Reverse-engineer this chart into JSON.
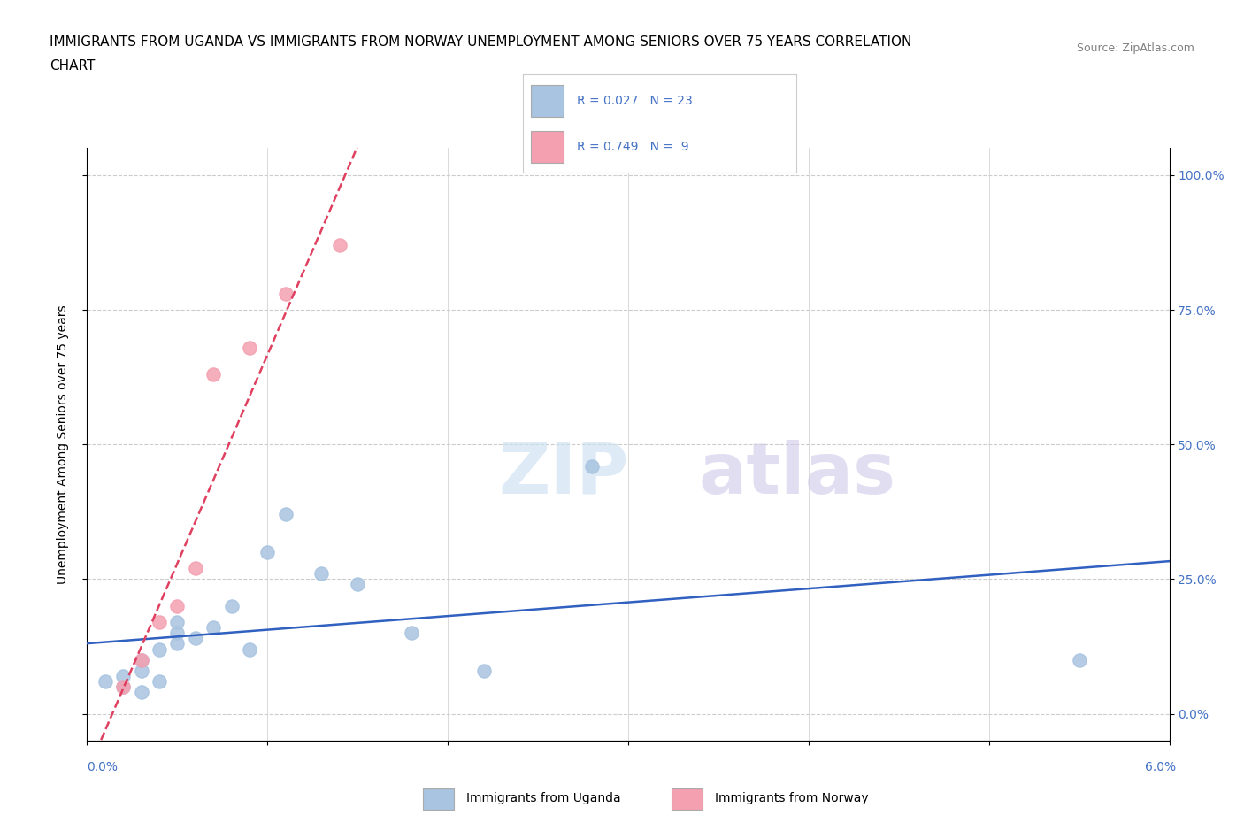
{
  "title_line1": "IMMIGRANTS FROM UGANDA VS IMMIGRANTS FROM NORWAY UNEMPLOYMENT AMONG SENIORS OVER 75 YEARS CORRELATION",
  "title_line2": "CHART",
  "source": "Source: ZipAtlas.com",
  "ylabel": "Unemployment Among Seniors over 75 years",
  "yticks": [
    0.0,
    0.25,
    0.5,
    0.75,
    1.0
  ],
  "ytick_labels": [
    "0.0%",
    "25.0%",
    "50.0%",
    "75.0%",
    "100.0%"
  ],
  "xlim": [
    0.0,
    0.06
  ],
  "ylim": [
    -0.05,
    1.05
  ],
  "watermark_zip": "ZIP",
  "watermark_atlas": "atlas",
  "legend_row1": "R = 0.027   N = 23",
  "legend_row2": "R = 0.749   N =  9",
  "uganda_color": "#a8c4e0",
  "norway_color": "#f4a0b0",
  "uganda_line_color": "#3060c0",
  "norway_line_color": "#e04060",
  "uganda_points_x": [
    0.001,
    0.002,
    0.002,
    0.003,
    0.003,
    0.003,
    0.004,
    0.004,
    0.005,
    0.005,
    0.005,
    0.006,
    0.007,
    0.008,
    0.009,
    0.01,
    0.011,
    0.013,
    0.015,
    0.018,
    0.022,
    0.028,
    0.055
  ],
  "uganda_points_y": [
    0.06,
    0.05,
    0.07,
    0.04,
    0.08,
    0.1,
    0.06,
    0.12,
    0.13,
    0.15,
    0.17,
    0.14,
    0.16,
    0.2,
    0.12,
    0.3,
    0.37,
    0.26,
    0.24,
    0.15,
    0.08,
    0.46,
    0.1
  ],
  "norway_points_x": [
    0.002,
    0.003,
    0.004,
    0.005,
    0.006,
    0.007,
    0.009,
    0.011,
    0.014
  ],
  "norway_points_y": [
    0.05,
    0.1,
    0.17,
    0.2,
    0.27,
    0.63,
    0.68,
    0.78,
    0.87
  ],
  "grid_color": "#cccccc",
  "background_color": "#ffffff",
  "title_fontsize": 11,
  "axis_label_fontsize": 10,
  "tick_fontsize": 10,
  "legend_label1": "Immigrants from Uganda",
  "legend_label2": "Immigrants from Norway"
}
